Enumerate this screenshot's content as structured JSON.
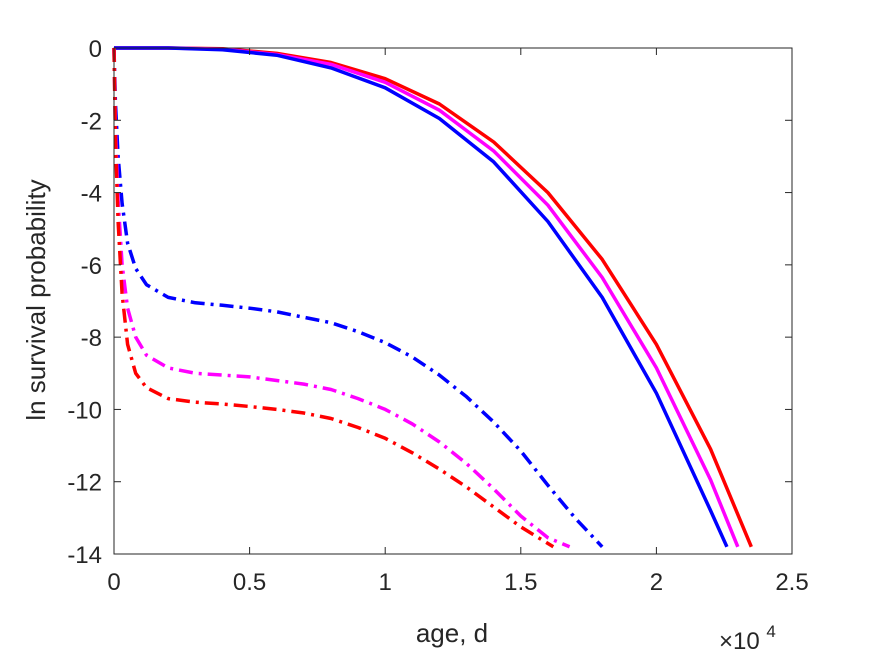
{
  "chart_data": {
    "type": "line",
    "title": "",
    "xlabel": "age, d",
    "ylabel": "ln survival probability",
    "x_multiplier_label": "×10",
    "x_multiplier_exponent": "4",
    "xlim": [
      0,
      25000
    ],
    "ylim": [
      -14,
      0
    ],
    "xticks": [
      0,
      5000,
      10000,
      15000,
      20000,
      25000
    ],
    "xtick_labels": [
      "0",
      "0.5",
      "1",
      "1.5",
      "2",
      "2.5"
    ],
    "yticks": [
      0,
      -2,
      -4,
      -6,
      -8,
      -10,
      -12,
      -14
    ],
    "ytick_labels": [
      "0",
      "-2",
      "-4",
      "-6",
      "-8",
      "-10",
      "-12",
      "-14"
    ],
    "grid": false,
    "series": [
      {
        "color": "#ff0000",
        "style": "solid",
        "x": [
          0,
          2000,
          4000,
          6000,
          8000,
          10000,
          12000,
          14000,
          16000,
          18000,
          20000,
          22000,
          23500
        ],
        "y": [
          0,
          0,
          -0.02,
          -0.15,
          -0.4,
          -0.85,
          -1.55,
          -2.6,
          -4.0,
          -5.85,
          -8.2,
          -11.1,
          -13.8
        ]
      },
      {
        "color": "#ff00ff",
        "style": "solid",
        "x": [
          0,
          2000,
          4000,
          6000,
          8000,
          10000,
          12000,
          14000,
          16000,
          18000,
          20000,
          22000,
          23000
        ],
        "y": [
          0,
          0,
          -0.03,
          -0.18,
          -0.45,
          -0.95,
          -1.72,
          -2.85,
          -4.35,
          -6.35,
          -8.85,
          -11.95,
          -13.8
        ]
      },
      {
        "color": "#0000ff",
        "style": "solid",
        "x": [
          0,
          2000,
          4000,
          6000,
          8000,
          10000,
          12000,
          14000,
          16000,
          18000,
          20000,
          22000,
          22600
        ],
        "y": [
          0,
          0,
          -0.05,
          -0.2,
          -0.55,
          -1.1,
          -1.95,
          -3.15,
          -4.8,
          -6.9,
          -9.55,
          -12.8,
          -13.8
        ]
      },
      {
        "color": "#0000ff",
        "style": "dashdot",
        "x": [
          0,
          50,
          150,
          300,
          500,
          800,
          1200,
          2000,
          3000,
          4000,
          5000,
          6000,
          7000,
          8000,
          9000,
          10000,
          11000,
          12000,
          13000,
          14000,
          15000,
          16000,
          17000,
          18000
        ],
        "y": [
          0,
          -1.5,
          -3.0,
          -4.3,
          -5.4,
          -6.1,
          -6.55,
          -6.9,
          -7.05,
          -7.12,
          -7.2,
          -7.3,
          -7.45,
          -7.6,
          -7.85,
          -8.15,
          -8.55,
          -9.05,
          -9.65,
          -10.35,
          -11.15,
          -12.1,
          -13.0,
          -13.8
        ]
      },
      {
        "color": "#ff00ff",
        "style": "dashdot",
        "x": [
          0,
          50,
          150,
          300,
          500,
          800,
          1200,
          2000,
          3000,
          4000,
          5000,
          6000,
          7000,
          8000,
          9000,
          10000,
          11000,
          12000,
          13000,
          14000,
          15000,
          16000,
          16800
        ],
        "y": [
          0,
          -2.2,
          -4.2,
          -6.0,
          -7.2,
          -8.0,
          -8.5,
          -8.85,
          -9.0,
          -9.05,
          -9.1,
          -9.2,
          -9.3,
          -9.45,
          -9.7,
          -10.0,
          -10.4,
          -10.9,
          -11.5,
          -12.2,
          -12.95,
          -13.55,
          -13.8
        ]
      },
      {
        "color": "#ff0000",
        "style": "dashdot",
        "x": [
          0,
          50,
          150,
          300,
          500,
          800,
          1200,
          2000,
          3000,
          4000,
          5000,
          6000,
          7000,
          8000,
          9000,
          10000,
          11000,
          12000,
          13000,
          14000,
          15000,
          16200
        ],
        "y": [
          0,
          -2.5,
          -4.8,
          -6.8,
          -8.2,
          -9.0,
          -9.4,
          -9.7,
          -9.8,
          -9.85,
          -9.92,
          -10.0,
          -10.1,
          -10.25,
          -10.5,
          -10.8,
          -11.2,
          -11.65,
          -12.15,
          -12.7,
          -13.25,
          -13.8
        ]
      }
    ]
  }
}
